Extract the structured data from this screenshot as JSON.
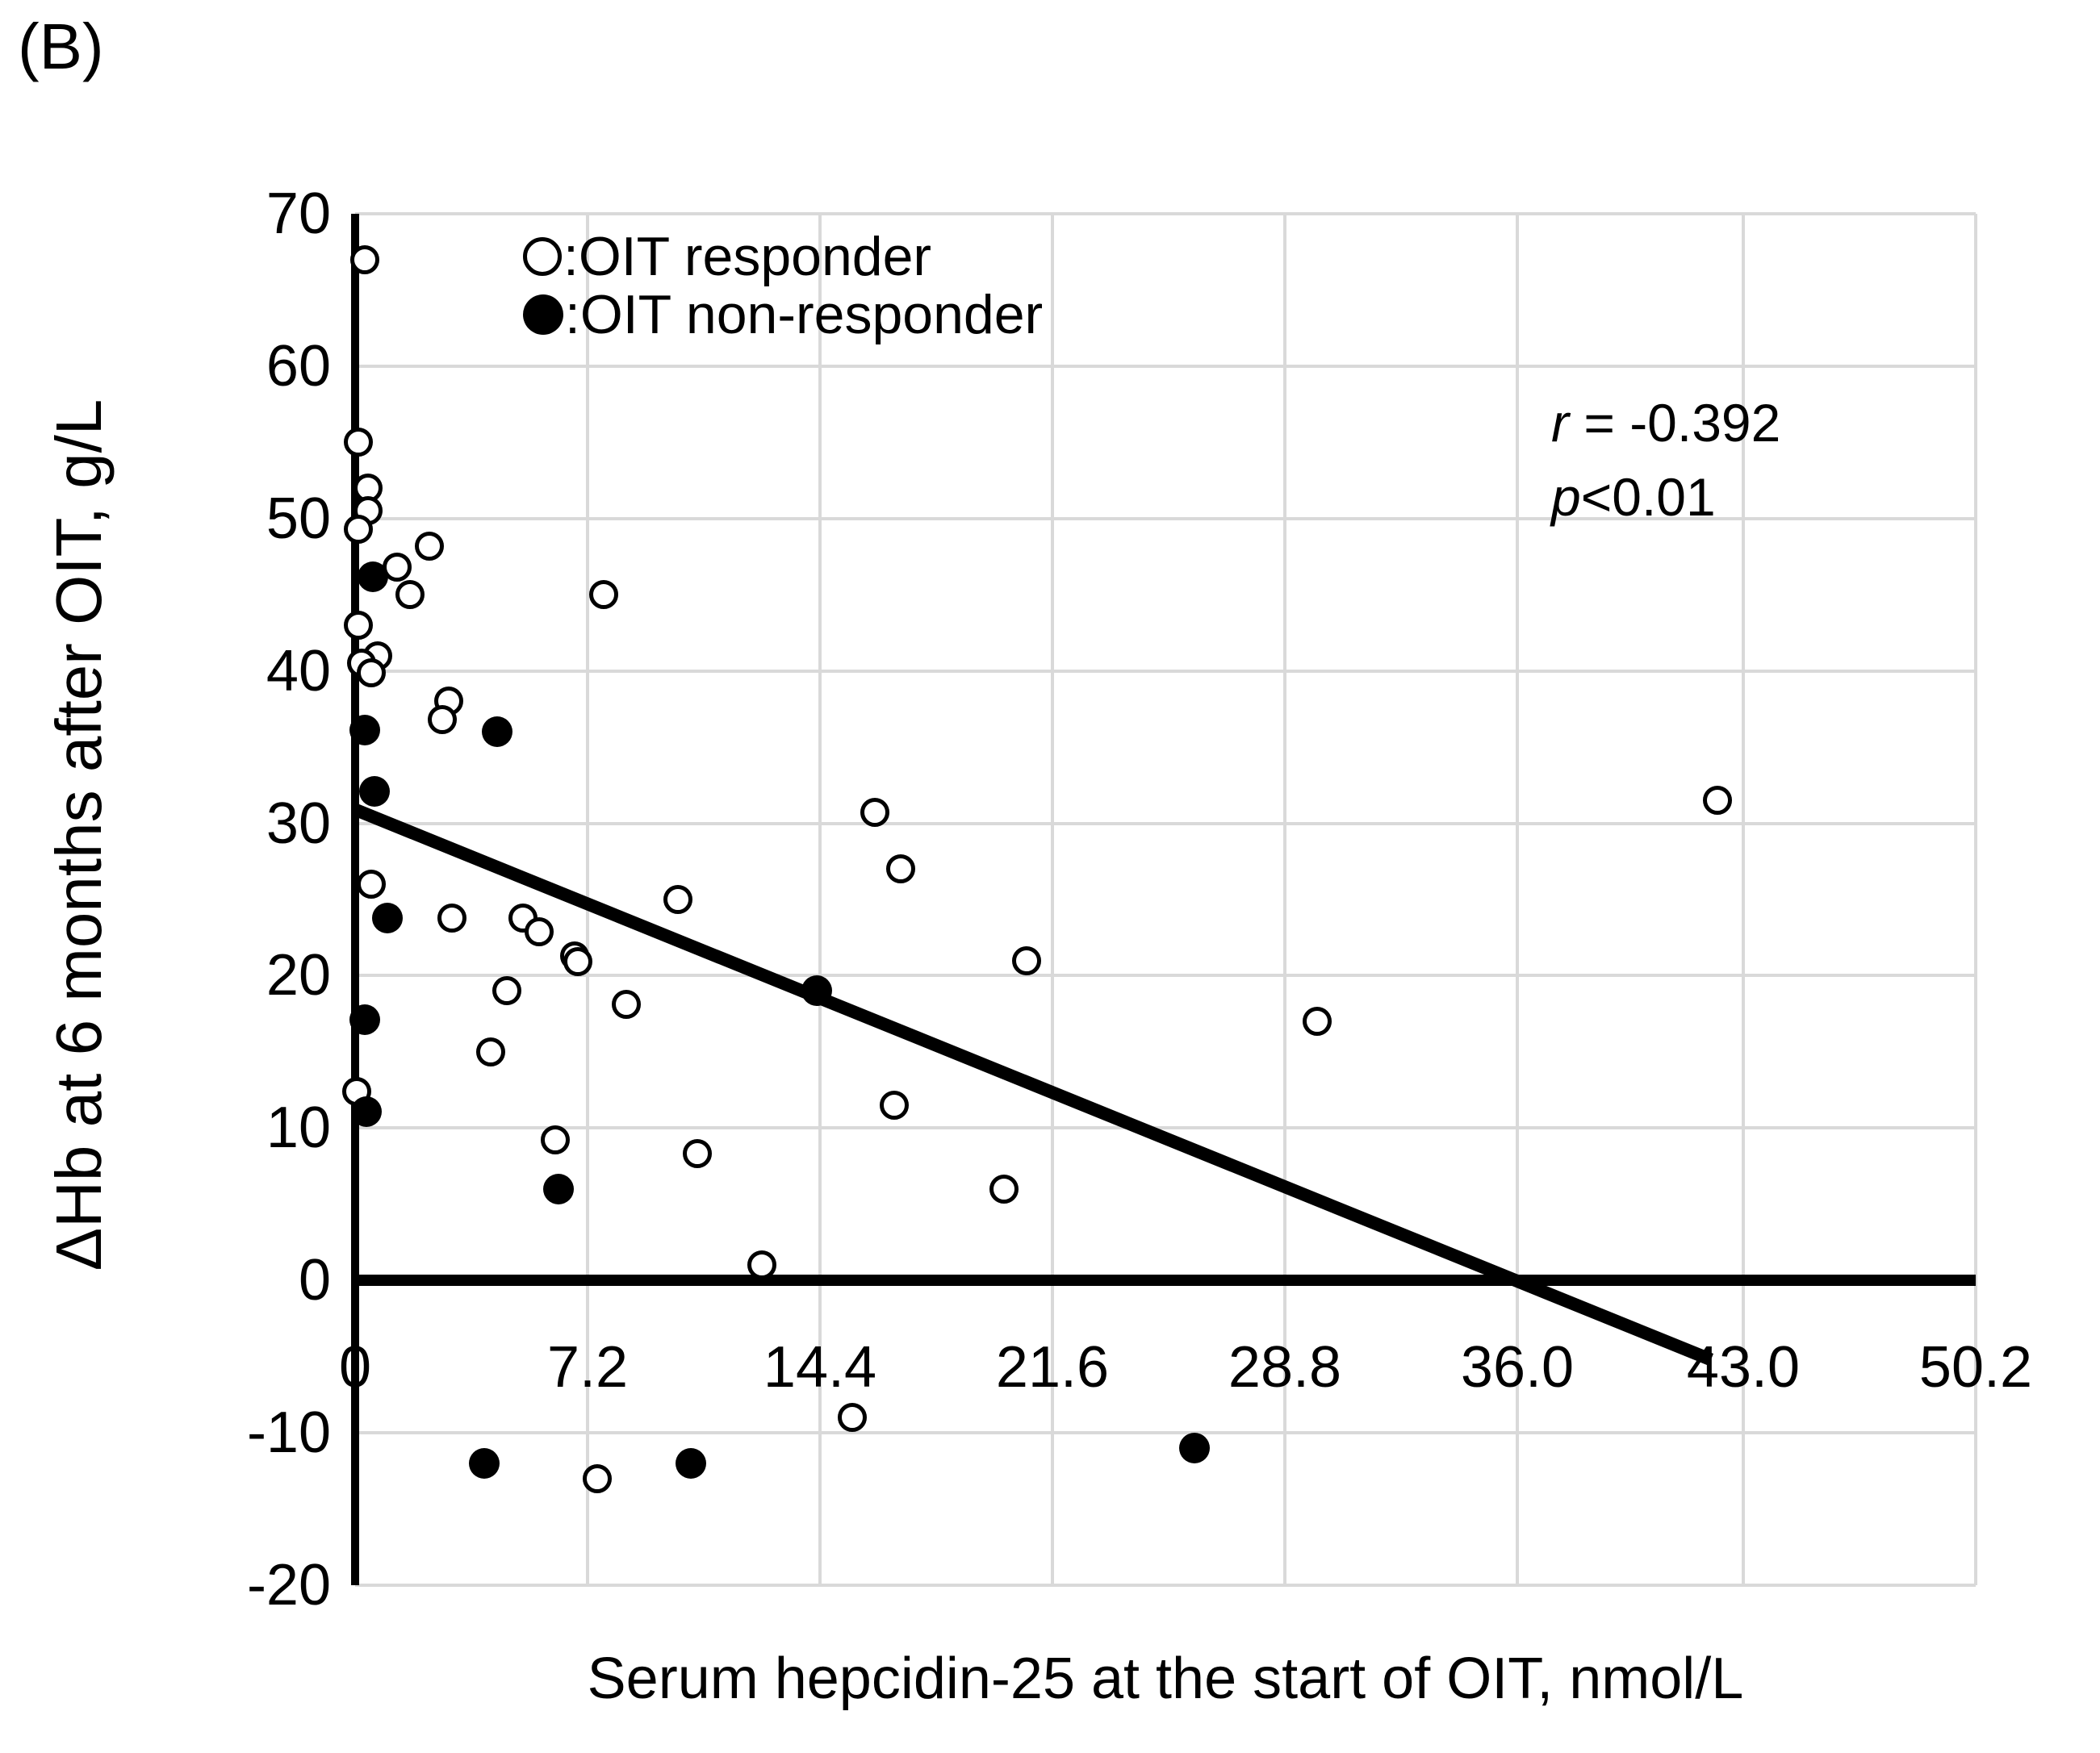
{
  "panel_label": "(B)",
  "legend": {
    "items": [
      {
        "marker": "open-circle-icon",
        "label": ":OIT responder"
      },
      {
        "marker": "filled-circle-icon",
        "label": ":OIT non-responder"
      }
    ]
  },
  "annotation": {
    "lines": [
      {
        "var": "r",
        "rest": " = -0.392"
      },
      {
        "var": "p",
        "rest": "<0.01"
      }
    ]
  },
  "colors": {
    "foreground": "#000000",
    "gridline": "#d9d9d9",
    "background": "#ffffff"
  },
  "chart_data": {
    "type": "scatter",
    "title": "",
    "xlabel": "Serum hepcidin-25 at the start of OIT, nmol/L",
    "ylabel": "ΔHb at 6 months after OIT, g/L",
    "xlim": [
      0,
      50.2
    ],
    "ylim": [
      -20,
      70
    ],
    "grid": true,
    "x_ticks": [
      0,
      7.2,
      14.4,
      21.6,
      28.8,
      36.0,
      43.0,
      50.2
    ],
    "x_tick_labels": [
      "0",
      "7.2",
      "14.4",
      "21.6",
      "28.8",
      "36.0",
      "43.0",
      "50.2"
    ],
    "y_ticks": [
      70,
      60,
      50,
      40,
      30,
      20,
      10,
      0,
      -10,
      -20
    ],
    "y_tick_labels": [
      "70",
      "60",
      "50",
      "40",
      "30",
      "20",
      "10",
      "0",
      "-10",
      "-20"
    ],
    "legend_position": "top-left-inside",
    "series": [
      {
        "name": "OIT responder",
        "marker": "open",
        "points": [
          [
            0.3,
            67
          ],
          [
            0.1,
            55
          ],
          [
            0.4,
            52
          ],
          [
            0.4,
            50.5
          ],
          [
            0.1,
            49.3
          ],
          [
            2.3,
            48.2
          ],
          [
            1.3,
            46.8
          ],
          [
            1.7,
            45
          ],
          [
            7.7,
            45
          ],
          [
            0.1,
            43
          ],
          [
            0.7,
            41
          ],
          [
            0.2,
            40.5
          ],
          [
            0.5,
            39.9
          ],
          [
            2.9,
            38
          ],
          [
            2.7,
            36.8
          ],
          [
            0.5,
            26
          ],
          [
            10.0,
            25
          ],
          [
            3.0,
            23.8
          ],
          [
            5.2,
            23.8
          ],
          [
            5.7,
            22.9
          ],
          [
            6.8,
            21.3
          ],
          [
            6.9,
            20.9
          ],
          [
            4.7,
            19
          ],
          [
            8.4,
            18.1
          ],
          [
            4.2,
            15
          ],
          [
            0.05,
            12.4
          ],
          [
            6.2,
            9.2
          ],
          [
            16.1,
            30.7
          ],
          [
            16.9,
            27
          ],
          [
            20.8,
            21
          ],
          [
            16.7,
            11.5
          ],
          [
            10.6,
            8.3
          ],
          [
            20.1,
            6
          ],
          [
            12.6,
            1
          ],
          [
            29.8,
            17
          ],
          [
            42.2,
            31.5
          ],
          [
            15.4,
            -9
          ],
          [
            7.5,
            -13
          ]
        ]
      },
      {
        "name": "OIT non-responder",
        "marker": "filled",
        "points": [
          [
            0.55,
            46.2
          ],
          [
            0.3,
            36.1
          ],
          [
            4.4,
            36
          ],
          [
            0.6,
            32.1
          ],
          [
            1.0,
            23.8
          ],
          [
            0.3,
            17.1
          ],
          [
            0.35,
            11.1
          ],
          [
            6.3,
            6
          ],
          [
            14.3,
            19
          ],
          [
            4.0,
            -12
          ],
          [
            10.4,
            -12
          ],
          [
            26.0,
            -11
          ]
        ]
      }
    ],
    "regression_line": {
      "x1": 0,
      "y1": 30.9,
      "x2": 42.0,
      "y2": -5.2
    },
    "zero_line_y": 0,
    "stats": {
      "r": -0.392,
      "p": "<0.01"
    }
  }
}
